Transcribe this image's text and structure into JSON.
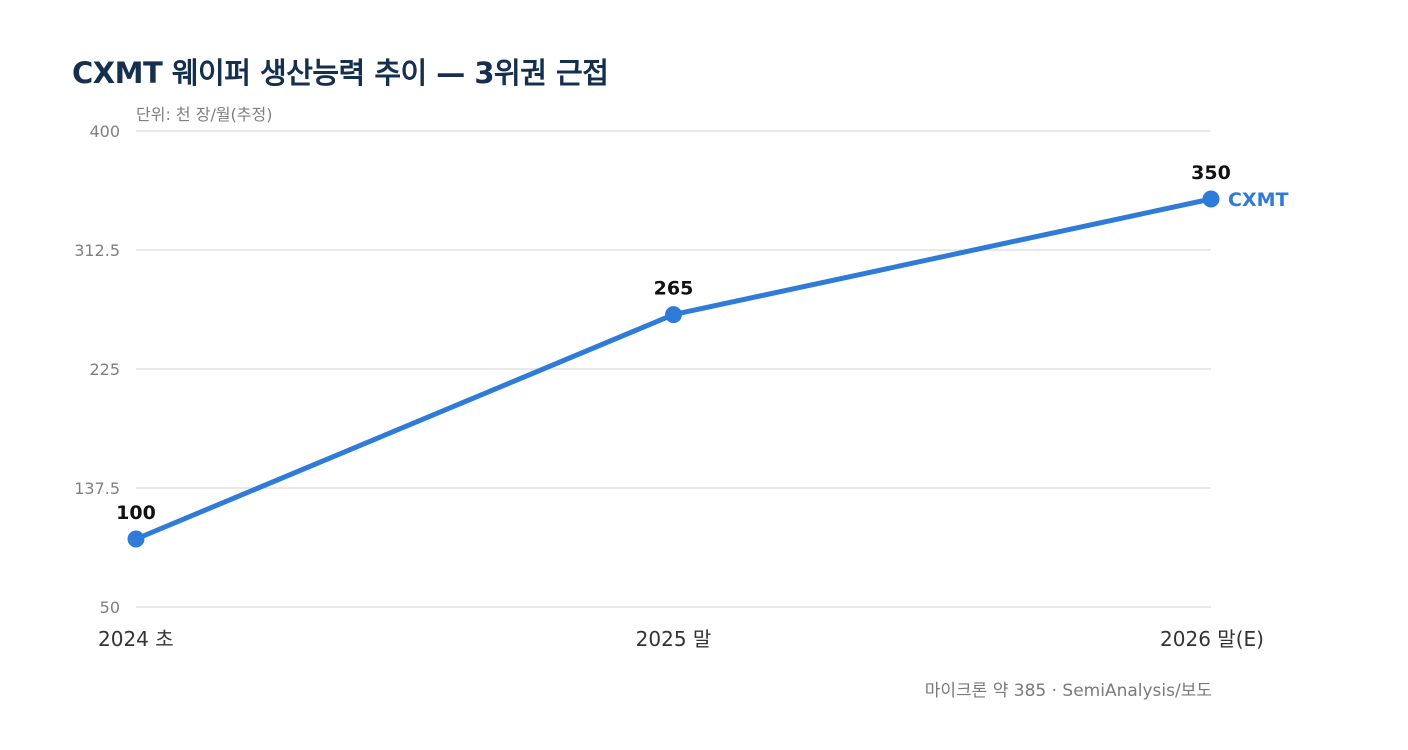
{
  "header": {
    "title": "CXMT 웨이퍼 생산능력 추이 — 3위권 근접",
    "unit_note": "단위: 천 장/월(추정)"
  },
  "footer": {
    "source": "마이크론 약 385 · SemiAnalysis/보도"
  },
  "colors": {
    "series": "#2e7bd8",
    "title": "#15304f",
    "grid": "#dcdcdc",
    "muted": "#7f7f7f"
  },
  "chart_data": {
    "type": "line",
    "categories": [
      "2024 초",
      "2025 말",
      "2026 말(E)"
    ],
    "series": [
      {
        "name": "CXMT",
        "values": [
          100,
          265,
          350
        ],
        "data_labels": [
          "100",
          "265",
          "350"
        ]
      }
    ],
    "yticks": [
      50,
      137.5,
      225,
      312.5,
      400
    ],
    "ytick_labels": [
      "50",
      "137.5",
      "225",
      "312.5",
      "400"
    ],
    "ylim": [
      50,
      400
    ],
    "grid": true,
    "legend": "inline-end-label"
  }
}
